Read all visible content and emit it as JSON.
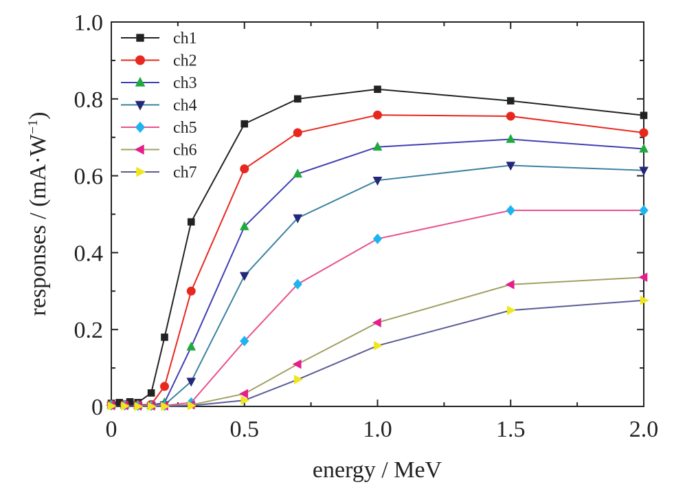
{
  "chart_data": {
    "type": "line",
    "title": "",
    "xlabel": "energy / MeV",
    "ylabel_main": "responses / (mA·W",
    "ylabel_sup": "−1",
    "ylabel_close": ")",
    "xlim": [
      0,
      2.0
    ],
    "ylim": [
      0,
      1.0
    ],
    "x_ticks": [
      0,
      0.5,
      1.0,
      1.5,
      2.0
    ],
    "x_tick_labels": [
      "0",
      "0.5",
      "1.0",
      "1.5",
      "2.0"
    ],
    "y_ticks": [
      0,
      0.2,
      0.4,
      0.6,
      0.8,
      1.0
    ],
    "y_tick_labels": [
      "0",
      "0.2",
      "0.4",
      "0.6",
      "0.8",
      "1.0"
    ],
    "legend_position": "top-left",
    "grid": false,
    "series": [
      {
        "name": "ch1",
        "color": "#222222",
        "marker": "square",
        "x": [
          0,
          0.03,
          0.07,
          0.1,
          0.15,
          0.2,
          0.3,
          0.5,
          0.7,
          1.0,
          1.5,
          2.0
        ],
        "y": [
          0.008,
          0.01,
          0.012,
          0.01,
          0.035,
          0.18,
          0.48,
          0.735,
          0.8,
          0.825,
          0.795,
          0.757
        ]
      },
      {
        "name": "ch2",
        "color": "#e8281e",
        "marker": "circle",
        "x": [
          0,
          0.05,
          0.1,
          0.15,
          0.2,
          0.3,
          0.5,
          0.7,
          1.0,
          1.5,
          2.0
        ],
        "y": [
          0.005,
          0.005,
          0.004,
          0.005,
          0.052,
          0.3,
          0.618,
          0.712,
          0.758,
          0.755,
          0.712
        ]
      },
      {
        "name": "ch3",
        "color": "#3f3fb4",
        "marker": "triangle-up",
        "markerColor": "#1eaa3c",
        "x": [
          0,
          0.05,
          0.1,
          0.15,
          0.2,
          0.3,
          0.5,
          0.7,
          1.0,
          1.5,
          2.0
        ],
        "y": [
          0.004,
          0.004,
          0.003,
          0.003,
          0.01,
          0.155,
          0.468,
          0.605,
          0.675,
          0.695,
          0.67
        ]
      },
      {
        "name": "ch4",
        "color": "#3c82a0",
        "marker": "triangle-down",
        "markerColor": "#232878",
        "x": [
          0,
          0.05,
          0.1,
          0.15,
          0.2,
          0.3,
          0.5,
          0.7,
          1.0,
          1.5,
          2.0
        ],
        "y": [
          0.003,
          0.003,
          0.002,
          0.002,
          0.004,
          0.065,
          0.34,
          0.49,
          0.588,
          0.627,
          0.614
        ]
      },
      {
        "name": "ch5",
        "color": "#e8508c",
        "marker": "diamond",
        "markerColor": "#1eb4f0",
        "x": [
          0,
          0.05,
          0.1,
          0.15,
          0.2,
          0.3,
          0.5,
          0.7,
          1.0,
          1.5,
          2.0
        ],
        "y": [
          0.003,
          0.003,
          0.002,
          0.002,
          0.002,
          0.01,
          0.17,
          0.318,
          0.436,
          0.51,
          0.51
        ]
      },
      {
        "name": "ch6",
        "color": "#a0a064",
        "marker": "triangle-left",
        "markerColor": "#e61e8c",
        "x": [
          0,
          0.05,
          0.1,
          0.15,
          0.2,
          0.3,
          0.5,
          0.7,
          1.0,
          1.5,
          2.0
        ],
        "y": [
          0.002,
          0.002,
          0.001,
          0.001,
          0.001,
          0.004,
          0.033,
          0.11,
          0.218,
          0.317,
          0.336
        ]
      },
      {
        "name": "ch7",
        "color": "#5a5a96",
        "marker": "triangle-right",
        "markerColor": "#f0e61e",
        "x": [
          0,
          0.05,
          0.1,
          0.15,
          0.2,
          0.3,
          0.5,
          0.7,
          1.0,
          1.5,
          2.0
        ],
        "y": [
          0.001,
          0.001,
          0.0,
          0.0,
          0.0,
          0.002,
          0.016,
          0.07,
          0.158,
          0.25,
          0.276
        ]
      }
    ]
  }
}
